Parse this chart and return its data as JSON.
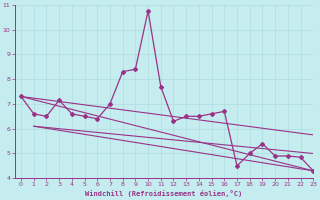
{
  "xlabel": "Windchill (Refroidissement éolien,°C)",
  "bg_color": "#c5ecee",
  "line_color": "#993388",
  "grid_color": "#b0dde0",
  "axis_color": "#993388",
  "xlim": [
    -0.5,
    23
  ],
  "ylim": [
    4,
    11
  ],
  "yticks": [
    4,
    5,
    6,
    7,
    8,
    9,
    10,
    11
  ],
  "xticks": [
    0,
    1,
    2,
    3,
    4,
    5,
    6,
    7,
    8,
    9,
    10,
    11,
    12,
    13,
    14,
    15,
    16,
    17,
    18,
    19,
    20,
    21,
    22,
    23
  ],
  "series1_x": [
    0,
    1,
    2,
    3,
    4,
    5,
    6,
    7,
    8,
    9,
    10,
    11,
    12,
    13,
    14,
    15,
    16,
    17,
    18,
    19,
    20,
    21,
    22,
    23
  ],
  "series1_y": [
    7.3,
    6.6,
    6.5,
    7.15,
    6.6,
    6.5,
    6.4,
    7.0,
    8.3,
    8.4,
    10.75,
    7.7,
    6.3,
    6.5,
    6.5,
    6.6,
    6.7,
    4.5,
    5.0,
    5.4,
    4.9,
    4.9,
    4.85,
    4.3
  ],
  "series2_x": [
    0,
    23
  ],
  "series2_y": [
    7.3,
    5.75
  ],
  "series3_x": [
    0,
    23
  ],
  "series3_y": [
    7.3,
    4.3
  ],
  "series4_x": [
    1,
    23
  ],
  "series4_y": [
    6.1,
    5.0
  ],
  "series5_x": [
    1,
    23
  ],
  "series5_y": [
    6.1,
    4.3
  ]
}
